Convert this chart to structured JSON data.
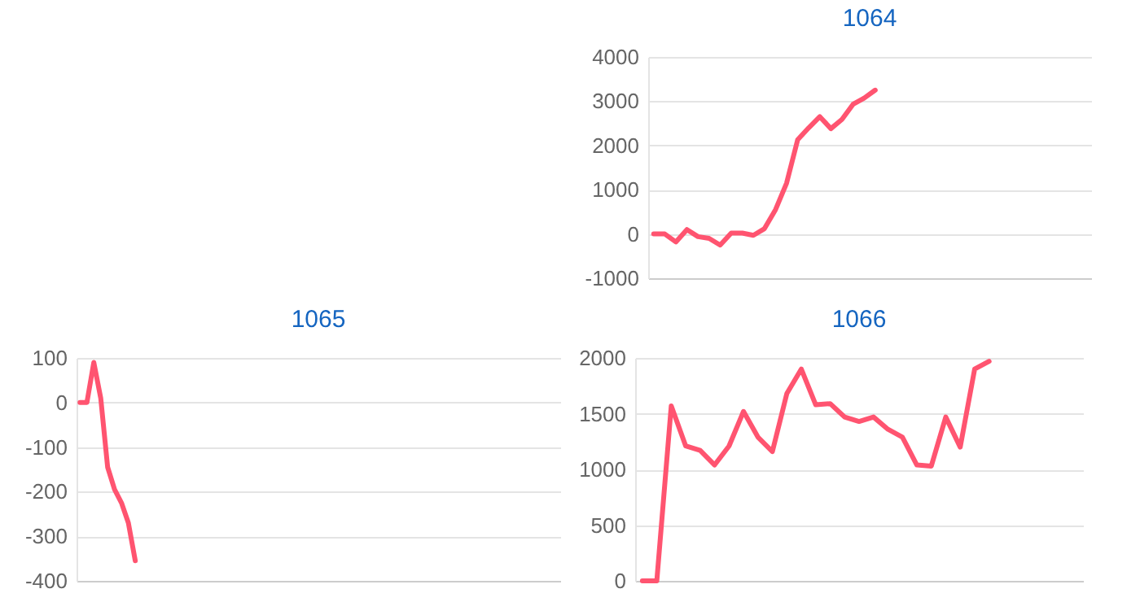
{
  "chart_data": [
    {
      "type": "line",
      "title": "1064",
      "categories": [
        null,
        null,
        null,
        null,
        null,
        null,
        null,
        null,
        null,
        null,
        null,
        null,
        null,
        null,
        null,
        null,
        null,
        null,
        null,
        null,
        null,
        null,
        null,
        null,
        null,
        null,
        null,
        null,
        null,
        null,
        null,
        null,
        null,
        null,
        null,
        null,
        null,
        null,
        null,
        null
      ],
      "series": [
        {
          "color": "#ff5470",
          "values": [
            0,
            0,
            -180,
            100,
            -60,
            -100,
            -250,
            20,
            20,
            -30,
            120,
            550,
            1150,
            2130,
            2400,
            2650,
            2380,
            2590,
            2930,
            3070,
            3250,
            null,
            null,
            null,
            null,
            null,
            null,
            null,
            null,
            null,
            null,
            null,
            null,
            null,
            null,
            null,
            null,
            null,
            null,
            null
          ]
        }
      ],
      "ylim": [
        -1000,
        4000
      ],
      "yticks": [
        -1000,
        0,
        1000,
        2000,
        3000,
        4000
      ],
      "grid": "y",
      "tick_labels": "y"
    },
    {
      "type": "line",
      "title": "1065",
      "categories": [
        null,
        null,
        null,
        null,
        null,
        null,
        null,
        null,
        null,
        null,
        null,
        null,
        null,
        null,
        null,
        null,
        null,
        null,
        null,
        null,
        null,
        null,
        null,
        null,
        null,
        null,
        null,
        null,
        null,
        null,
        null,
        null,
        null,
        null,
        null,
        null,
        null,
        null,
        null,
        null,
        null,
        null,
        null,
        null,
        null,
        null,
        null,
        null,
        null,
        null,
        null,
        null,
        null,
        null,
        null,
        null,
        null,
        null,
        null,
        null,
        null,
        null,
        null,
        null,
        null,
        null,
        null,
        null,
        null,
        null
      ],
      "series": [
        {
          "color": "#ff5470",
          "values": [
            0,
            0,
            90,
            10,
            -145,
            -195,
            -225,
            -270,
            -355,
            null,
            null,
            null,
            null,
            null,
            null,
            null,
            null,
            null,
            null,
            null,
            null,
            null,
            null,
            null,
            null,
            null,
            null,
            null,
            null,
            null,
            null,
            null,
            null,
            null,
            null,
            null,
            null,
            null,
            null,
            null,
            null,
            null,
            null,
            null,
            null,
            null,
            null,
            null,
            null,
            null,
            null,
            null,
            null,
            null,
            null,
            null,
            null,
            null,
            null,
            null,
            null,
            null,
            null,
            null,
            null,
            null,
            null,
            null,
            null,
            null
          ]
        }
      ],
      "ylim": [
        -400,
        100
      ],
      "yticks": [
        -400,
        -300,
        -200,
        -100,
        0,
        100
      ],
      "grid": "y",
      "tick_labels": "y"
    },
    {
      "type": "line",
      "title": "1066",
      "categories": [
        null,
        null,
        null,
        null,
        null,
        null,
        null,
        null,
        null,
        null,
        null,
        null,
        null,
        null,
        null,
        null,
        null,
        null,
        null,
        null,
        null,
        null,
        null,
        null,
        null,
        null,
        null,
        null,
        null,
        null,
        null
      ],
      "series": [
        {
          "color": "#ff5470",
          "values": [
            0,
            0,
            1570,
            1210,
            1170,
            1040,
            1210,
            1520,
            1290,
            1160,
            1680,
            1900,
            1580,
            1590,
            1470,
            1430,
            1470,
            1360,
            1290,
            1040,
            1030,
            1470,
            1200,
            1900,
            1970,
            null,
            null,
            null,
            null,
            null,
            null
          ]
        }
      ],
      "ylim": [
        0,
        2000
      ],
      "yticks": [
        0,
        500,
        1000,
        1500,
        2000
      ],
      "grid": "y",
      "tick_labels": "y"
    }
  ]
}
